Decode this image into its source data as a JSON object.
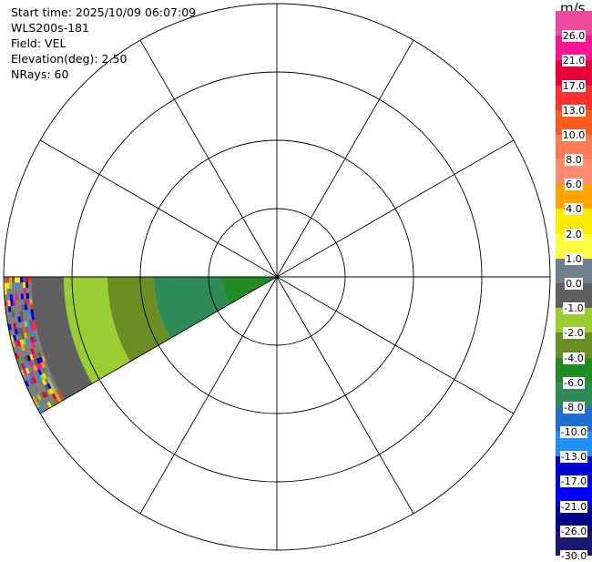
{
  "info": {
    "start_time": "Start time: 2025/10/09 06:07:09",
    "instrument": "WLS200s-181",
    "field": "Field: VEL",
    "elevation": "Elevation(deg): 2.50",
    "nrays": "NRays: 60"
  },
  "colorbar": {
    "unit": "m/s",
    "ticks": [
      "26.0",
      "21.0",
      "17.0",
      "13.0",
      "10.0",
      "8.0",
      "6.0",
      "4.0",
      "2.0",
      "1.0",
      "0.0",
      "-1.0",
      "-2.0",
      "-4.0",
      "-6.0",
      "-8.0",
      "-10.0",
      "-13.0",
      "-17.0",
      "-21.0",
      "-26.0",
      "-30.0"
    ],
    "colors": [
      "#f04a9e",
      "#ff1493",
      "#e8003a",
      "#ff3030",
      "#ff5a1e",
      "#ff7b55",
      "#ff8c70",
      "#ffa400",
      "#ffea00",
      "#ffff40",
      "#708090",
      "#606060",
      "#9acd32",
      "#6b8e23",
      "#228b22",
      "#2e8b57",
      "#1e6fd0",
      "#1e90ff",
      "#0000cd",
      "#0000ff",
      "#00008b",
      "#191970"
    ]
  },
  "chart_data": {
    "type": "ppi",
    "field": "VEL",
    "units": "m/s",
    "range_rings": 4,
    "azimuth_lines_deg": [
      0,
      30,
      60,
      90,
      120,
      150,
      180,
      210,
      240,
      270,
      300,
      330
    ],
    "sector": {
      "azimuth_start_deg": 240,
      "azimuth_end_deg": 270
    },
    "range_bands": [
      {
        "from_fraction": 0.0,
        "to_fraction": 0.2,
        "value": -6.0
      },
      {
        "from_fraction": 0.2,
        "to_fraction": 0.45,
        "value": -8.0
      },
      {
        "from_fraction": 0.45,
        "to_fraction": 0.62,
        "value": -4.0
      },
      {
        "from_fraction": 0.62,
        "to_fraction": 0.78,
        "value": -2.0
      },
      {
        "from_fraction": 0.78,
        "to_fraction": 0.9,
        "value": -1.0
      },
      {
        "from_fraction": 0.9,
        "to_fraction": 1.0,
        "value": "noise"
      }
    ]
  }
}
